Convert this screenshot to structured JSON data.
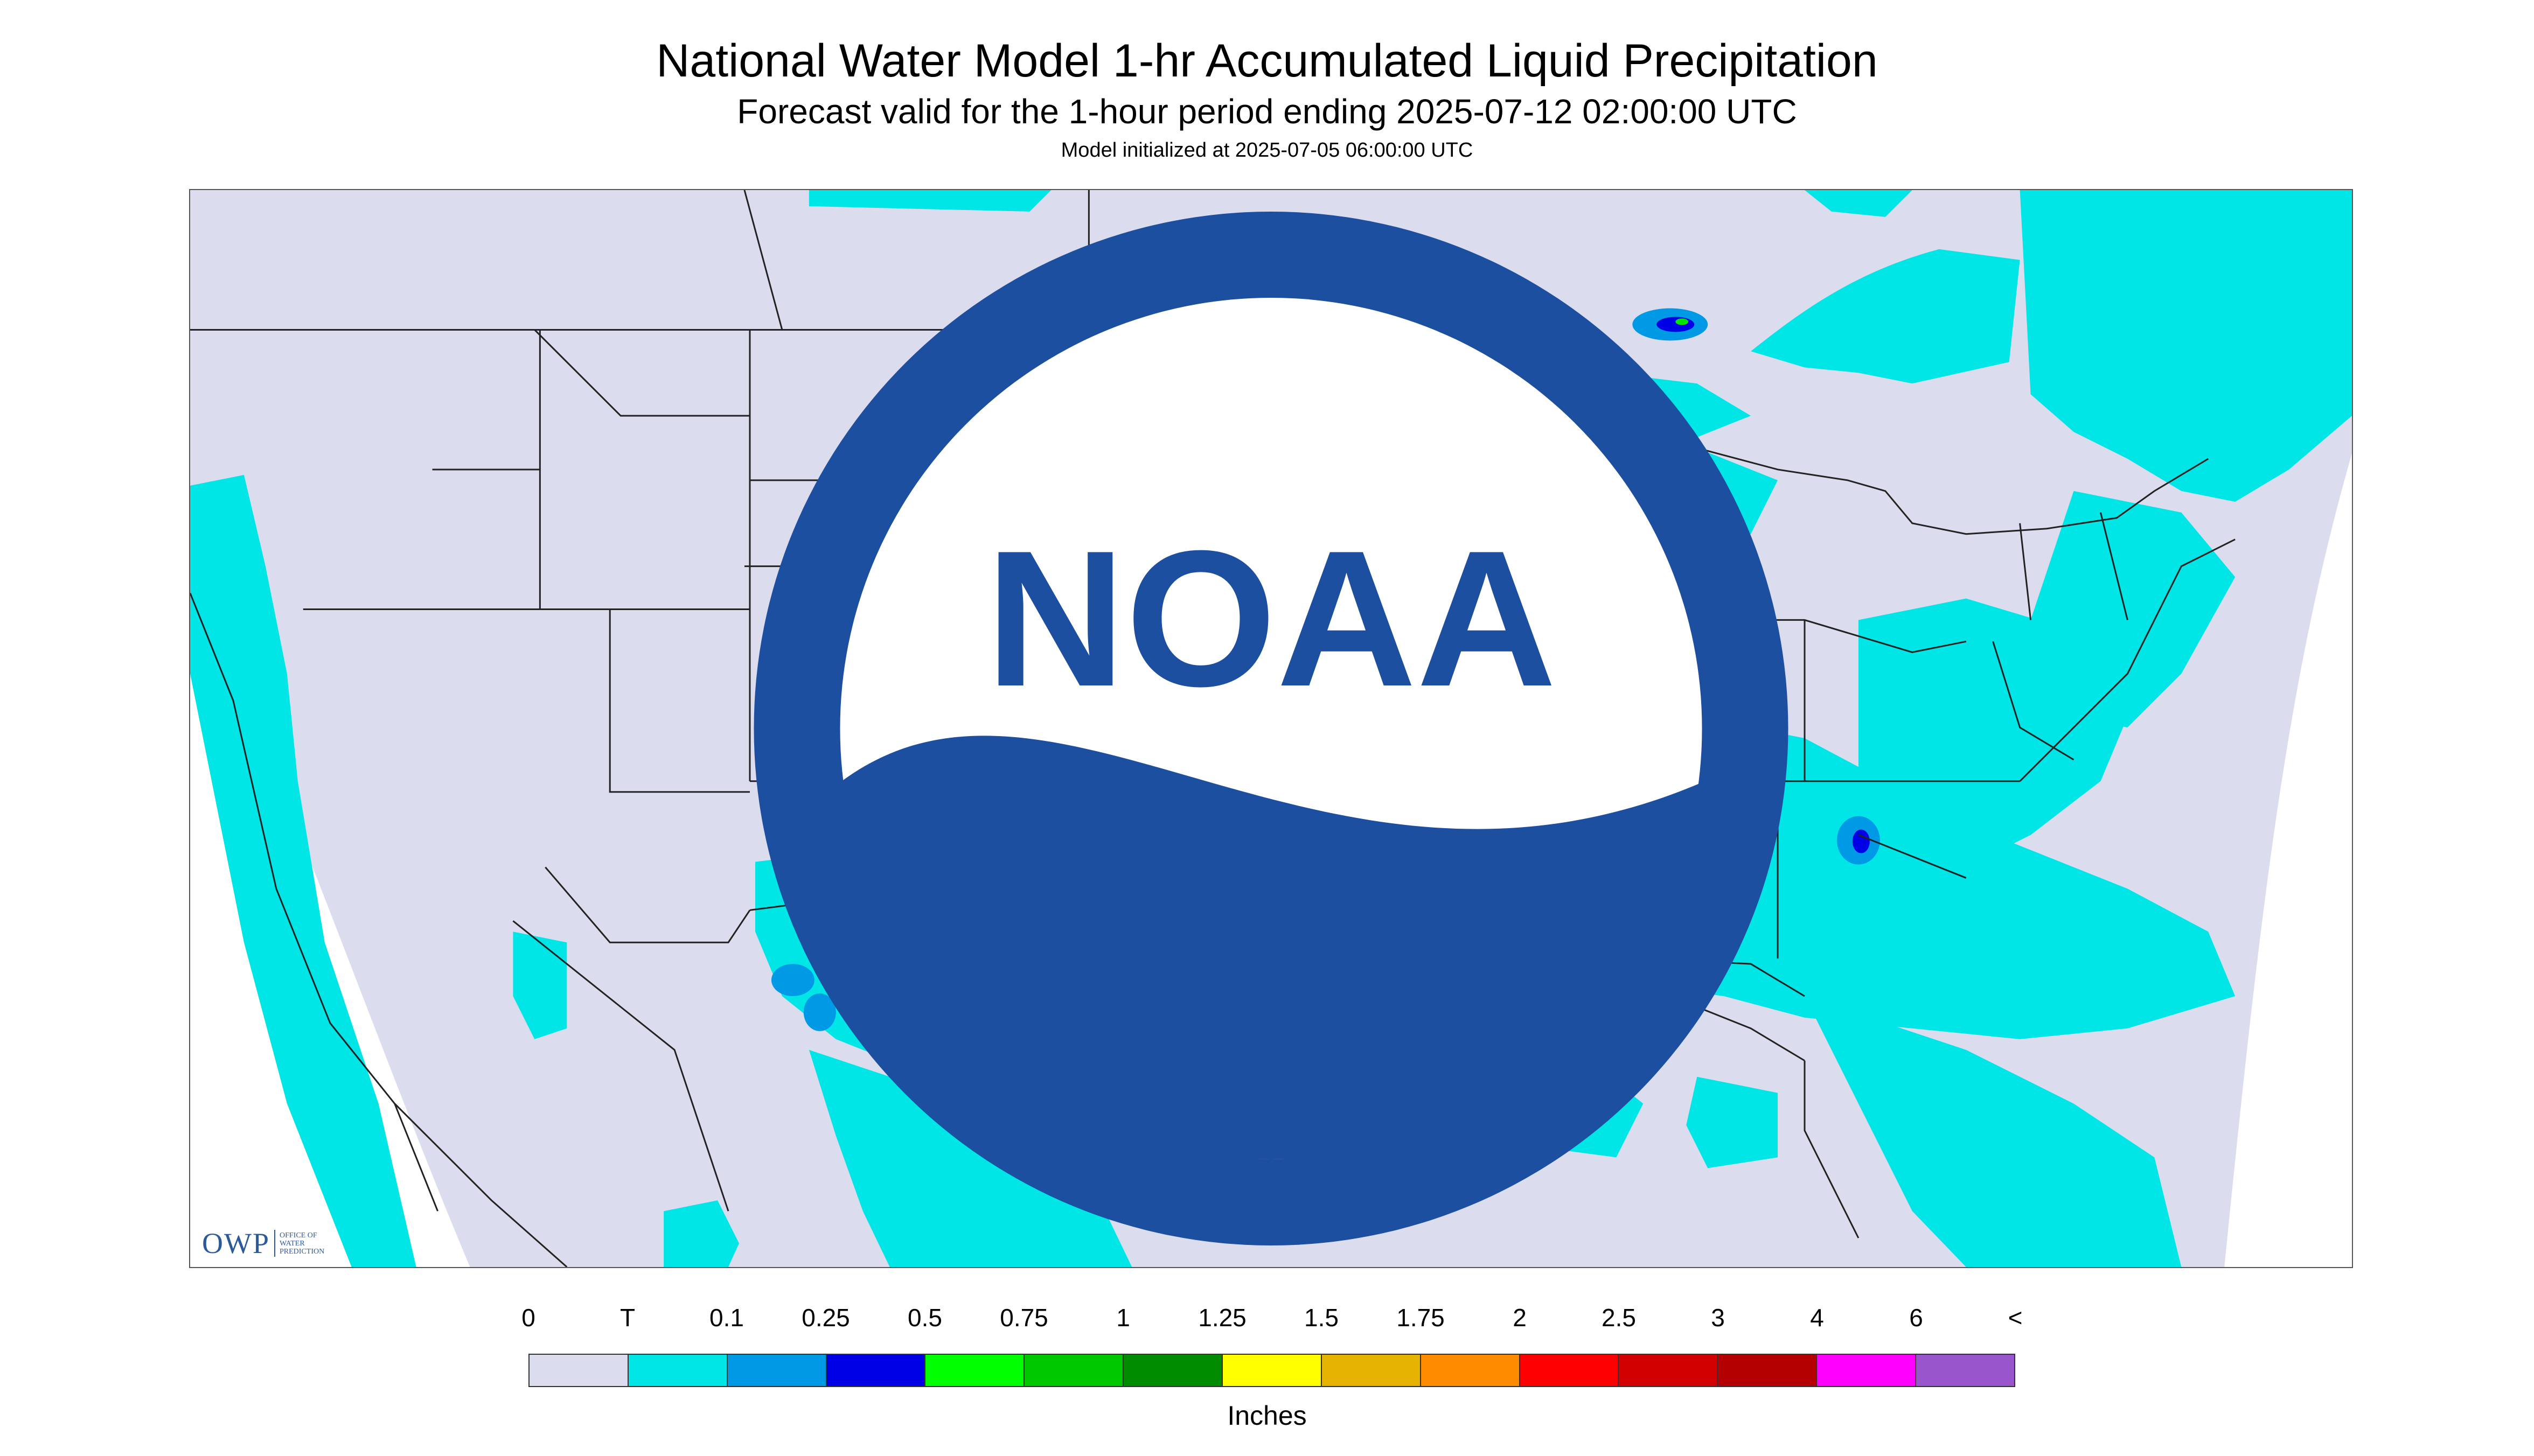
{
  "title": "National Water Model 1-hr Accumulated Liquid Precipitation",
  "subtitle": "Forecast valid for the 1-hour period ending 2025-07-12 02:00:00 UTC",
  "model_init": "Model initialized at 2025-07-05 06:00:00 UTC",
  "colors": {
    "background": "#dcdcef",
    "trace": "#00e5e5",
    "light": "#0099e6",
    "medium": "#0000e6",
    "green": "#00e600",
    "state_lines": "#222222",
    "outside": "#ffffff"
  },
  "logos": {
    "owp_mark": "OWP",
    "owp_text": [
      "OFFICE OF",
      "WATER",
      "PREDICTION"
    ],
    "noaa_text": "NOAA"
  },
  "legend": {
    "labels": [
      "0",
      "T",
      "0.1",
      "0.25",
      "0.5",
      "0.75",
      "1",
      "1.25",
      "1.5",
      "1.75",
      "2",
      "2.5",
      "3",
      "4",
      "6",
      "<"
    ],
    "colors": [
      "#dcdcef",
      "#00e5e5",
      "#0099e6",
      "#0000e6",
      "#00ff00",
      "#00c800",
      "#008c00",
      "#ffff00",
      "#e6b400",
      "#ff8c00",
      "#ff0000",
      "#d20000",
      "#b40000",
      "#ff00ff",
      "#9955cc"
    ],
    "unit": "Inches"
  },
  "icons": [
    "owp-logo",
    "noaa-logo-icon"
  ]
}
